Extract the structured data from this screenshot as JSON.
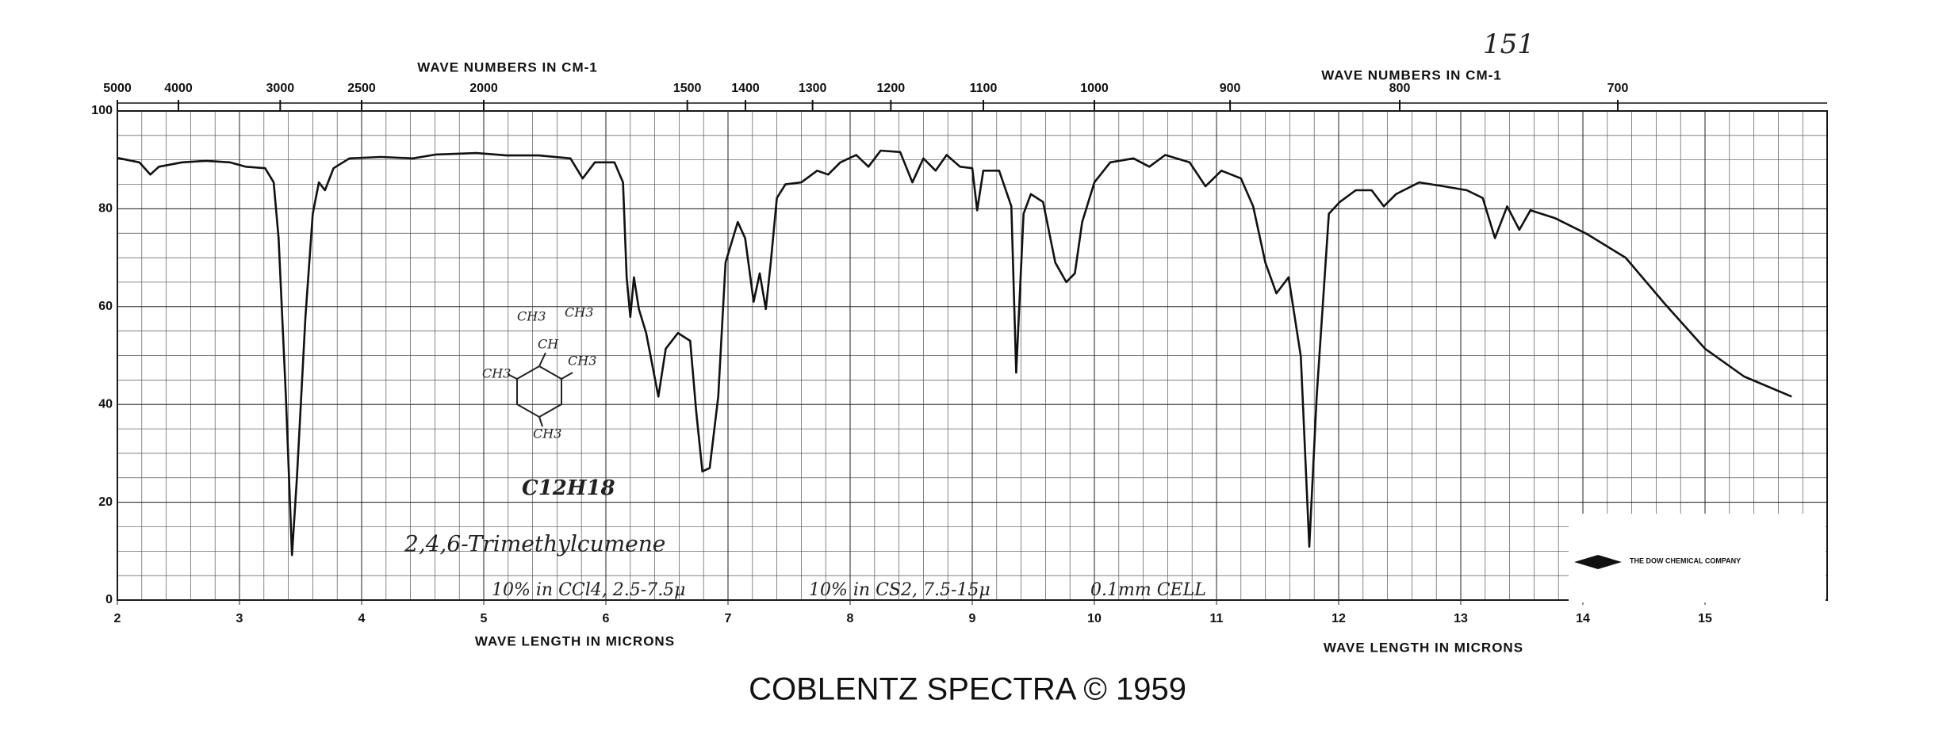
{
  "chart_data": {
    "type": "line",
    "xlabel": "WAVE LENGTH IN MICRONS",
    "x2label": "WAVE NUMBERS IN CM-1",
    "xlim": [
      2,
      16
    ],
    "xticks": [
      2,
      3,
      4,
      5,
      6,
      7,
      8,
      9,
      10,
      11,
      12,
      13,
      14,
      15
    ],
    "x2ticks": [
      5000,
      4000,
      3000,
      2500,
      2000,
      1500,
      1400,
      1300,
      1200,
      1100,
      1000,
      900,
      800,
      700
    ],
    "ylim": [
      0,
      100
    ],
    "yticks": [
      0,
      20,
      40,
      60,
      80,
      100
    ],
    "grid": true,
    "color": "#111111",
    "x": [
      2.0,
      2.18,
      2.27,
      2.34,
      2.53,
      2.73,
      2.92,
      3.05,
      3.21,
      3.28,
      3.32,
      3.38,
      3.43,
      3.47,
      3.54,
      3.6,
      3.65,
      3.7,
      3.77,
      3.9,
      4.16,
      4.42,
      4.61,
      4.94,
      5.19,
      5.45,
      5.71,
      5.81,
      5.91,
      6.07,
      6.14,
      6.17,
      6.2,
      6.23,
      6.27,
      6.33,
      6.43,
      6.49,
      6.59,
      6.69,
      6.74,
      6.79,
      6.85,
      6.92,
      6.98,
      7.08,
      7.14,
      7.21,
      7.26,
      7.31,
      7.35,
      7.4,
      7.47,
      7.6,
      7.73,
      7.82,
      7.92,
      8.05,
      8.15,
      8.25,
      8.41,
      8.51,
      8.6,
      8.7,
      8.79,
      8.9,
      9.0,
      9.04,
      9.09,
      9.22,
      9.32,
      9.36,
      9.42,
      9.48,
      9.58,
      9.68,
      9.77,
      9.84,
      9.9,
      10.0,
      10.13,
      10.32,
      10.45,
      10.58,
      10.78,
      10.91,
      11.04,
      11.2,
      11.3,
      11.4,
      11.49,
      11.59,
      11.69,
      11.76,
      11.82,
      11.92,
      12.01,
      12.14,
      12.27,
      12.37,
      12.47,
      12.66,
      12.86,
      13.05,
      13.18,
      13.28,
      13.38,
      13.48,
      13.57,
      13.77,
      14.03,
      14.35,
      14.68,
      15.0,
      15.32,
      15.71
    ],
    "values": [
      90.4,
      89.5,
      87,
      88.6,
      89.5,
      89.8,
      89.5,
      88.6,
      88.3,
      85.4,
      74,
      41.6,
      9.2,
      25,
      58,
      79,
      85.4,
      83.8,
      88.3,
      90.3,
      90.6,
      90.3,
      91.1,
      91.4,
      90.9,
      90.9,
      90.3,
      86.2,
      89.5,
      89.5,
      85.4,
      66,
      57.9,
      66,
      59.5,
      54.6,
      41.6,
      51.4,
      54.6,
      53,
      38.4,
      26.3,
      27,
      41.6,
      69,
      77.3,
      74,
      61,
      66.8,
      59.5,
      69,
      82.2,
      85,
      85.4,
      87.8,
      87,
      89.5,
      91,
      88.6,
      91.9,
      91.6,
      85.4,
      90.3,
      87.8,
      91,
      88.6,
      88.3,
      79.7,
      87.8,
      87.8,
      80.5,
      46.5,
      79,
      83,
      81.4,
      69,
      65,
      66.8,
      77.3,
      85.4,
      89.5,
      90.3,
      88.6,
      91,
      89.5,
      84.6,
      87.8,
      86.2,
      80.5,
      69,
      62.7,
      66,
      49.8,
      10.9,
      41.6,
      79,
      81.4,
      83.8,
      83.8,
      80.5,
      83,
      85.4,
      84.6,
      83.8,
      82.2,
      74,
      80.5,
      75.7,
      79.7,
      78.1,
      74.9,
      70,
      60.3,
      51.4,
      45.7,
      41.6
    ],
    "annotations": {
      "page_number": "151",
      "compound": "2,4,6-Trimethylcumene",
      "formula": "C12H18",
      "conditions": [
        "10% in CCl4, 2.5-7.5μ",
        "10% in CS2, 7.5-15μ",
        "0.1mm CELL"
      ],
      "structure_labels": [
        "CH3",
        "CH3",
        "CH",
        "CH3",
        "CH3",
        "CH3"
      ],
      "company": "THE DOW CHEMICAL COMPANY",
      "footer": "COBLENTZ SPECTRA © 1959"
    }
  }
}
